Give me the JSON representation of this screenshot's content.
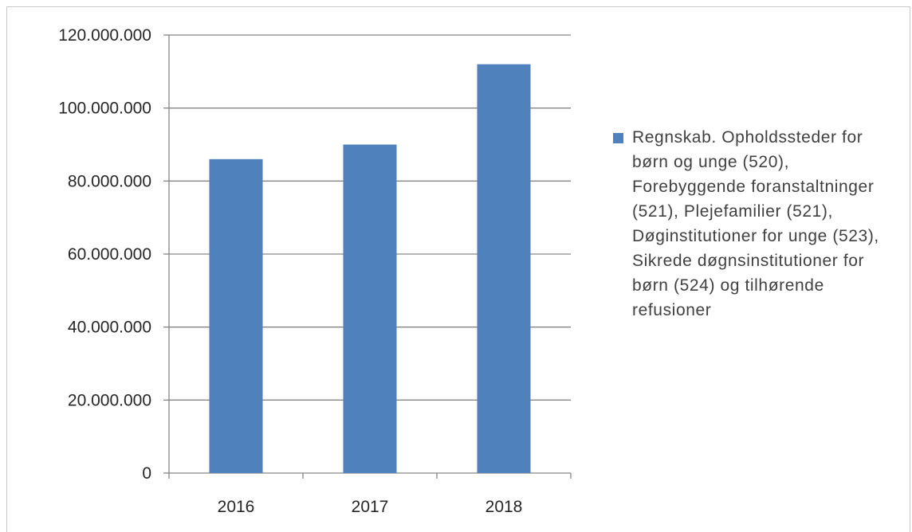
{
  "chart_data": {
    "type": "bar",
    "categories": [
      "2016",
      "2017",
      "2018"
    ],
    "series": [
      {
        "name": "Regnskab. Opholdssteder for børn og unge (520), Forebyggende foranstaltninger (521), Plejefamilier (521), Døginstitutioner for unge (523), Sikrede døgnsinstitutioner for børn (524) og tilhørende refusioner",
        "values": [
          86000000,
          90000000,
          112000000
        ],
        "color": "#4f81bd"
      }
    ],
    "y_ticks": [
      "0",
      "20.000.000",
      "40.000.000",
      "60.000.000",
      "80.000.000",
      "100.000.000",
      "120.000.000"
    ],
    "ylim": [
      0,
      120000000
    ],
    "grid": true,
    "legend_position": "right"
  }
}
